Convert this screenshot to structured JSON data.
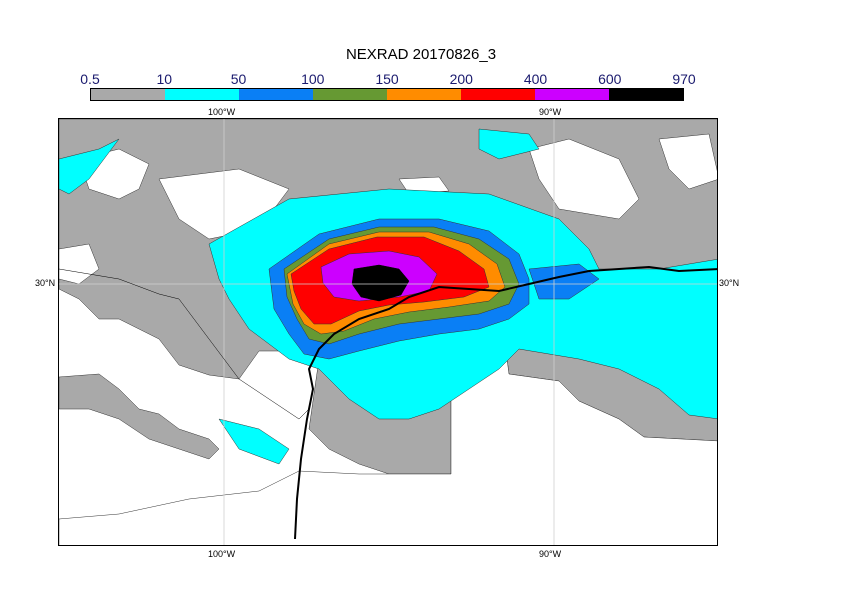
{
  "title": "NEXRAD 20170826_3",
  "colorbar": {
    "ticks": [
      "0.5",
      "10",
      "50",
      "100",
      "150",
      "200",
      "400",
      "600",
      "970"
    ],
    "colors": [
      "#a9a9a9",
      "#00ffff",
      "#0a7ff5",
      "#669933",
      "#ff8c00",
      "#ff0000",
      "#cc00ff",
      "#000000"
    ]
  },
  "map": {
    "lon_top_left": "100°W",
    "lon_top_right": "90°W",
    "lon_bottom_left": "100°W",
    "lon_bottom_right": "90°W",
    "lat_left": "30°N",
    "lat_right": "30°N"
  }
}
